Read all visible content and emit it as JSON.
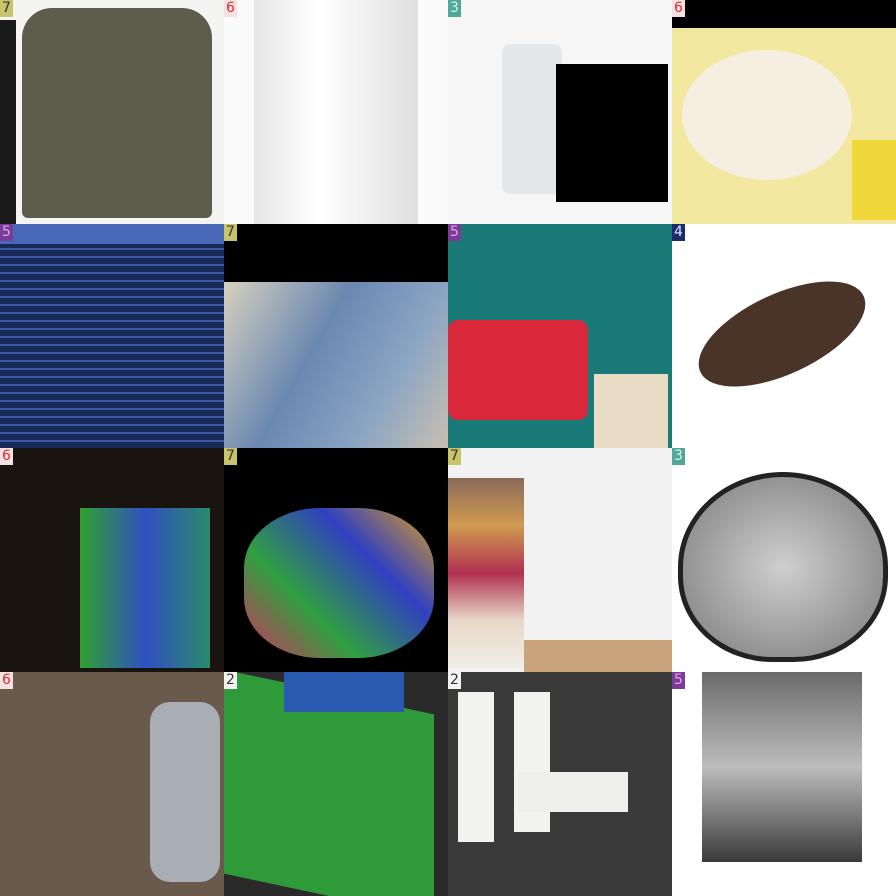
{
  "tiles": [
    {
      "label": 7
    },
    {
      "label": 6
    },
    {
      "label": 3
    },
    {
      "label": 6
    },
    {
      "label": 5
    },
    {
      "label": 7
    },
    {
      "label": 5
    },
    {
      "label": 4
    },
    {
      "label": 6
    },
    {
      "label": 7
    },
    {
      "label": 7
    },
    {
      "label": 3
    },
    {
      "label": 6
    },
    {
      "label": 2
    },
    {
      "label": 2
    },
    {
      "label": 5
    }
  ]
}
